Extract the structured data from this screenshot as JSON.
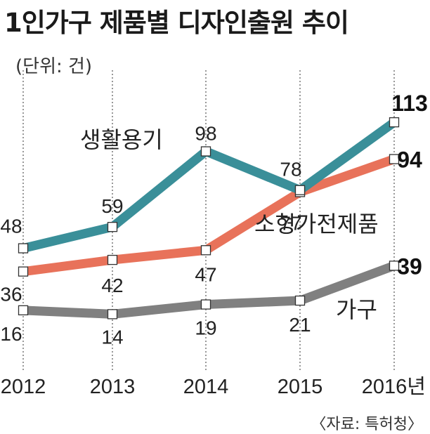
{
  "chart_data": {
    "type": "line",
    "title": "1인가구 제품별 디자인출원 추이",
    "unit_label": "(단위: 건)",
    "source": "〈자료: 특허청〉",
    "categories": [
      "2012",
      "2013",
      "2014",
      "2015",
      "2016년"
    ],
    "series": [
      {
        "name": "생활용기",
        "values": [
          48,
          59,
          98,
          78,
          113
        ],
        "color": "#3a8f99"
      },
      {
        "name": "소형가전제품",
        "values": [
          36,
          42,
          47,
          77,
          94
        ],
        "color": "#e8725a"
      },
      {
        "name": "가구",
        "values": [
          16,
          14,
          19,
          21,
          39
        ],
        "color": "#808080"
      }
    ],
    "ylim": [
      0,
      120
    ],
    "xlabel": "",
    "ylabel": ""
  }
}
